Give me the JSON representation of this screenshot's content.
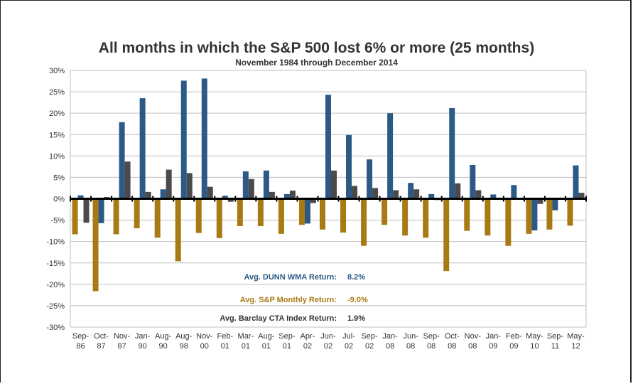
{
  "chart_data": {
    "type": "bar",
    "title": "All months in which the S&P 500 lost 6% or more (25 months)",
    "subtitle": "November 1984 through December 2014",
    "ylim": [
      -30,
      30
    ],
    "yticks": [
      30,
      25,
      20,
      15,
      10,
      5,
      0,
      -5,
      -10,
      -15,
      -20,
      -25,
      -30
    ],
    "ytick_labels": [
      "30%",
      "25%",
      "20%",
      "15%",
      "10%",
      "5%",
      "0%",
      "-5%",
      "-10%",
      "-15%",
      "-20%",
      "-25%",
      "-30%"
    ],
    "grid": true,
    "categories": [
      [
        "Sep-",
        "86"
      ],
      [
        "Oct-",
        "87"
      ],
      [
        "Nov-",
        "87"
      ],
      [
        "Jan-",
        "90"
      ],
      [
        "Aug-",
        "90"
      ],
      [
        "Aug-",
        "98"
      ],
      [
        "Nov-",
        "00"
      ],
      [
        "Feb-",
        "01"
      ],
      [
        "Mar-",
        "01"
      ],
      [
        "Aug-",
        "01"
      ],
      [
        "Sep-",
        "01"
      ],
      [
        "Apr-",
        "02"
      ],
      [
        "Jun-",
        "02"
      ],
      [
        "Jul-",
        "02"
      ],
      [
        "Sep-",
        "02"
      ],
      [
        "Jan-",
        "08"
      ],
      [
        "Jun-",
        "08"
      ],
      [
        "Sep-",
        "08"
      ],
      [
        "Oct-",
        "08"
      ],
      [
        "Nov-",
        "08"
      ],
      [
        "Jan-",
        "09"
      ],
      [
        "Feb-",
        "09"
      ],
      [
        "May-",
        "10"
      ],
      [
        "Sep-",
        "11"
      ],
      [
        "May-",
        "12"
      ]
    ],
    "series": [
      {
        "key": "sp",
        "color": "#a87a14",
        "values": [
          -8.3,
          -21.6,
          -8.3,
          -6.9,
          -9.1,
          -14.6,
          -8.0,
          -9.2,
          -6.4,
          -6.4,
          -8.2,
          -6.1,
          -7.2,
          -7.9,
          -11.0,
          -6.1,
          -8.6,
          -9.1,
          -16.9,
          -7.5,
          -8.6,
          -11.0,
          -8.2,
          -7.2,
          -6.3
        ]
      },
      {
        "key": "dunn",
        "color": "#2c5a86",
        "values": [
          0.8,
          -5.7,
          17.9,
          23.5,
          2.2,
          27.6,
          28.1,
          0.7,
          6.4,
          6.6,
          1.1,
          -5.8,
          24.3,
          14.9,
          9.2,
          20.0,
          3.7,
          1.1,
          21.2,
          7.9,
          1.0,
          3.2,
          -7.4,
          -2.7,
          7.8
        ]
      },
      {
        "key": "cta",
        "color": "#4a4a4a",
        "values": [
          -5.6,
          0.4,
          8.7,
          1.6,
          6.8,
          6.0,
          2.8,
          -0.7,
          4.6,
          1.6,
          1.9,
          -1.0,
          6.6,
          3.0,
          2.5,
          2.0,
          2.2,
          -0.3,
          3.6,
          2.0,
          0.0,
          0.0,
          -1.2,
          0.1,
          1.4
        ]
      }
    ],
    "annotations": [
      {
        "label": "Avg. DUNN WMA Return:",
        "value": "8.2%",
        "color": "#2c5a86"
      },
      {
        "label": "Avg. S&P Monthly Return:",
        "value": "-9.0%",
        "color": "#a87a14"
      },
      {
        "label": "Avg. Barclay CTA Index Return:",
        "value": "1.9%",
        "color": "#333333"
      }
    ]
  }
}
